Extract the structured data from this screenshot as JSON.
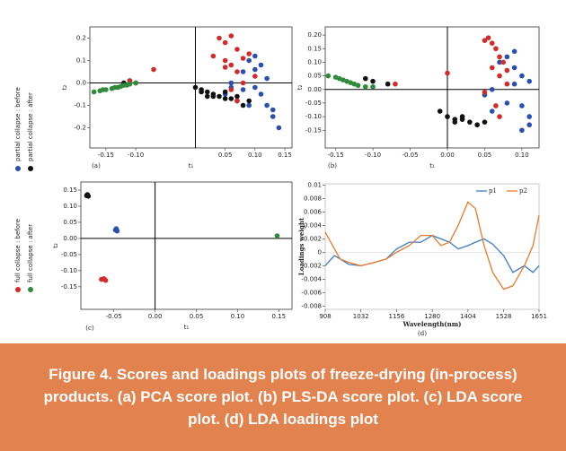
{
  "legend": [
    {
      "name": "partial collapse : before",
      "color": "#2b4fb0"
    },
    {
      "name": "partial collapse : after",
      "color": "#111111"
    },
    {
      "name": "full collapse : before",
      "color": "#d42a2a"
    },
    {
      "name": "full collapse : after",
      "color": "#2e8b3a"
    }
  ],
  "caption_lines": [
    "Figure 4. Scores and loadings plots of freeze-drying (in-process)",
    "products. (a) PCA score plot. (b) PLS-DA score plot. (c) LDA score",
    "plot. (d) LDA loadings plot"
  ],
  "chart_data": [
    {
      "type": "scatter",
      "label": "(a)",
      "xlabel": "t₁",
      "ylabel": "t₂",
      "xlim": [
        -0.177,
        0.162
      ],
      "ylim": [
        -0.29,
        0.25
      ],
      "xticks": [
        -0.15,
        {
          "value": -0.1,
          "label": "-0.10"
        },
        0.05,
        {
          "value": 0.1,
          "label": "0.10"
        },
        0.15
      ],
      "yticks": [
        0.2,
        0.1,
        {
          "value": 0,
          "label": "0.0"
        },
        -0.1,
        -0.2
      ],
      "series": [
        {
          "color": "#2b4fb0",
          "x": [
            0.05,
            0.06,
            0.07,
            0.08,
            0.09,
            0.1,
            0.11,
            0.12,
            0.13,
            0.14,
            0.1,
            0.09,
            0.08,
            0.12,
            0.11,
            0.06,
            0.1,
            0.13
          ],
          "values": [
            -0.05,
            0.0,
            -0.08,
            0.05,
            0.1,
            0.12,
            0.08,
            -0.1,
            -0.15,
            -0.2,
            -0.02,
            -0.1,
            -0.03,
            0.02,
            -0.05,
            -0.02,
            0.06,
            -0.12
          ]
        },
        {
          "color": "#111111",
          "x": [
            -0.12,
            -0.11,
            -0.1,
            0.0,
            0.01,
            0.02,
            0.02,
            0.03,
            0.04,
            0.05,
            0.06,
            0.07,
            0.08,
            0.09,
            0.01,
            0.03,
            0.05
          ],
          "values": [
            0.0,
            0.01,
            0.0,
            -0.02,
            -0.03,
            -0.04,
            -0.06,
            -0.05,
            -0.06,
            -0.07,
            -0.07,
            -0.06,
            -0.1,
            -0.08,
            -0.04,
            -0.06,
            -0.04
          ]
        },
        {
          "color": "#d42a2a",
          "x": [
            -0.11,
            -0.07,
            0.03,
            0.04,
            0.05,
            0.05,
            0.06,
            0.06,
            0.07,
            0.07,
            0.08,
            0.08,
            0.09,
            0.1,
            0.06,
            0.07,
            0.05
          ],
          "values": [
            0.01,
            0.06,
            0.12,
            0.2,
            0.18,
            0.1,
            0.21,
            0.08,
            0.15,
            0.05,
            0.11,
            0.0,
            0.13,
            0.03,
            -0.03,
            -0.08,
            0.07
          ]
        },
        {
          "color": "#2e8b3a",
          "x": [
            -0.17,
            -0.16,
            -0.155,
            -0.15,
            -0.14,
            -0.135,
            -0.13,
            -0.125,
            -0.12,
            -0.115,
            -0.11,
            -0.1
          ],
          "values": [
            -0.04,
            -0.035,
            -0.03,
            -0.03,
            -0.025,
            -0.02,
            -0.02,
            -0.015,
            -0.01,
            -0.01,
            -0.005,
            0.0
          ]
        }
      ]
    },
    {
      "type": "scatter",
      "label": "(b)",
      "xlabel": "t₁",
      "ylabel": "t₂",
      "xlim": [
        -0.164,
        0.123
      ],
      "ylim": [
        -0.215,
        0.23
      ],
      "xticks": [
        -0.15,
        {
          "value": -0.1,
          "label": "-0.10"
        },
        -0.05,
        {
          "value": 0,
          "label": "0.00"
        },
        0.05,
        {
          "value": 0.1,
          "label": "0.10"
        }
      ],
      "yticks": [
        {
          "value": 0.2,
          "label": "0.20"
        },
        0.15,
        {
          "value": 0.1,
          "label": "0.10"
        },
        0.05,
        {
          "value": 0,
          "label": "0.00"
        },
        -0.05,
        {
          "value": -0.1,
          "label": "-0.10"
        },
        -0.15
      ],
      "series": [
        {
          "color": "#2b4fb0",
          "x": [
            0.05,
            0.06,
            0.07,
            0.08,
            0.09,
            0.1,
            0.11,
            0.1,
            0.09,
            0.08,
            0.11,
            0.06,
            0.1,
            0.09,
            0.11
          ],
          "values": [
            -0.02,
            -0.08,
            0.1,
            0.12,
            0.08,
            0.05,
            -0.1,
            -0.15,
            0.02,
            -0.05,
            0.03,
            0.0,
            -0.06,
            0.14,
            -0.13
          ]
        },
        {
          "color": "#111111",
          "x": [
            -0.11,
            -0.1,
            -0.08,
            -0.01,
            0.0,
            0.01,
            0.02,
            0.03,
            0.04,
            0.05,
            0.02,
            0.01
          ],
          "values": [
            0.04,
            0.03,
            0.02,
            -0.08,
            -0.1,
            -0.11,
            -0.11,
            -0.12,
            -0.13,
            -0.12,
            -0.1,
            -0.12
          ]
        },
        {
          "color": "#d42a2a",
          "x": [
            0.0,
            -0.07,
            0.05,
            0.055,
            0.06,
            0.065,
            0.07,
            0.075,
            0.06,
            0.07,
            0.08,
            0.05,
            0.065,
            0.07,
            0.08
          ],
          "values": [
            0.06,
            0.02,
            0.18,
            0.19,
            0.17,
            0.15,
            0.12,
            0.1,
            0.08,
            0.05,
            0.02,
            -0.01,
            -0.06,
            -0.1,
            0.07
          ]
        },
        {
          "color": "#2e8b3a",
          "x": [
            -0.16,
            -0.15,
            -0.145,
            -0.14,
            -0.135,
            -0.13,
            -0.125,
            -0.12,
            -0.11,
            -0.1
          ],
          "values": [
            0.05,
            0.045,
            0.04,
            0.035,
            0.03,
            0.025,
            0.02,
            0.015,
            0.01,
            0.01
          ]
        }
      ]
    },
    {
      "type": "scatter",
      "label": "(c)",
      "xlabel": "t₁",
      "ylabel": "t₂",
      "xlim": [
        -0.09,
        0.166
      ],
      "ylim": [
        -0.22,
        0.175
      ],
      "xticks": [
        -0.05,
        {
          "value": 0,
          "label": "0.00"
        },
        0.05,
        {
          "value": 0.1,
          "label": "0.10"
        },
        0.15
      ],
      "yticks": [
        0.15,
        {
          "value": 0.1,
          "label": "0.10"
        },
        0.05,
        {
          "value": 0,
          "label": "0.00"
        },
        -0.05,
        {
          "value": -0.1,
          "label": "-0.10"
        },
        -0.15
      ],
      "series": [
        {
          "color": "#2b4fb0",
          "x": [
            -0.048,
            -0.047,
            -0.046
          ],
          "values": [
            0.026,
            0.03,
            0.023
          ]
        },
        {
          "color": "#111111",
          "x": [
            -0.083,
            -0.082,
            -0.081
          ],
          "values": [
            0.133,
            0.136,
            0.131
          ]
        },
        {
          "color": "#d42a2a",
          "x": [
            -0.065,
            -0.062,
            -0.06
          ],
          "values": [
            -0.127,
            -0.125,
            -0.13
          ]
        },
        {
          "color": "#2e8b3a",
          "x": [
            0.148
          ],
          "values": [
            0.008
          ]
        }
      ]
    },
    {
      "type": "line",
      "label": "(d)",
      "xlabel": "Wavelength(nm)",
      "ylabel": "Loadings weight",
      "xlim": [
        908,
        1651
      ],
      "ylim": [
        -0.0085,
        0.0102
      ],
      "xticks": [
        908,
        1032,
        1156,
        1280,
        1404,
        1528,
        1651
      ],
      "yticks": [
        0.01,
        0.008,
        0.006,
        0.004,
        0.002,
        0,
        -0.002,
        -0.004,
        -0.006,
        -0.008
      ],
      "x": [
        908,
        940,
        960,
        990,
        1032,
        1080,
        1120,
        1156,
        1200,
        1240,
        1280,
        1310,
        1340,
        1370,
        1404,
        1430,
        1460,
        1490,
        1528,
        1560,
        1600,
        1630,
        1651
      ],
      "series": [
        {
          "name": "p1",
          "color": "#3b7dc4",
          "values": [
            -0.002,
            -0.0005,
            -0.001,
            -0.0018,
            -0.002,
            -0.0015,
            -0.001,
            0.0005,
            0.0015,
            0.0015,
            0.0025,
            0.002,
            0.0015,
            0.0005,
            0.001,
            0.0015,
            0.002,
            0.0012,
            -0.0005,
            -0.003,
            -0.002,
            -0.003,
            -0.002
          ]
        },
        {
          "name": "p2",
          "color": "#e87b2e",
          "values": [
            0.003,
            0.0005,
            -0.001,
            -0.0015,
            -0.002,
            -0.0015,
            -0.001,
            0,
            0.001,
            0.0025,
            0.0025,
            0.001,
            0.0015,
            0.004,
            0.0075,
            0.0065,
            0.001,
            -0.003,
            -0.0055,
            -0.005,
            -0.002,
            0.001,
            0.0055
          ]
        }
      ]
    }
  ]
}
